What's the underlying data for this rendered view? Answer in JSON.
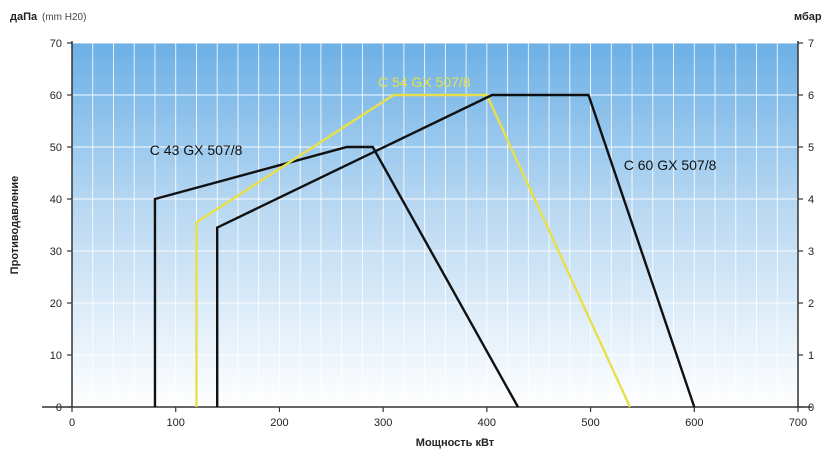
{
  "chart_data": {
    "type": "line",
    "title": "",
    "xlabel": "Мощность кВт",
    "ylabel": "Противодавление",
    "y_left_unit": "даПа",
    "y_left_unit_note": "(mm H20)",
    "y_right_unit": "мбар",
    "xlim": [
      0,
      700
    ],
    "ylim": [
      0,
      70
    ],
    "x_ticks": [
      0,
      100,
      200,
      300,
      400,
      500,
      600,
      700
    ],
    "y_ticks": [
      0,
      10,
      20,
      30,
      40,
      50,
      60,
      70
    ],
    "y_ticks_right": [
      "0",
      "1",
      "2",
      "3",
      "4",
      "5",
      "6",
      "7"
    ],
    "grid": true,
    "series": [
      {
        "name": "C 43 GX 507/8",
        "color": "#111111",
        "points": [
          [
            80,
            0
          ],
          [
            80,
            40
          ],
          [
            265,
            50
          ],
          [
            290,
            50
          ],
          [
            430,
            0
          ]
        ]
      },
      {
        "name": "C 54 GX 507/8",
        "color": "#e8e04a",
        "points": [
          [
            120,
            0
          ],
          [
            120,
            35.5
          ],
          [
            310,
            60
          ],
          [
            400,
            60
          ],
          [
            538,
            0
          ]
        ]
      },
      {
        "name": "C 60 GX 507/8",
        "color": "#111111",
        "points": [
          [
            140,
            0
          ],
          [
            140,
            34.5
          ],
          [
            405,
            60
          ],
          [
            498,
            60
          ],
          [
            600,
            0
          ]
        ]
      }
    ]
  }
}
